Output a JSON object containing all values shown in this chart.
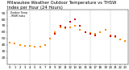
{
  "title": "Milwaukee Weather Outdoor Temperature vs THSW Index per Hour (24 Hours)",
  "title_fontsize": 3.8,
  "background_color": "#ffffff",
  "xlim": [
    -0.5,
    23.5
  ],
  "ylim": [
    10,
    95
  ],
  "yticks": [
    20,
    30,
    40,
    50,
    60,
    70,
    80,
    90
  ],
  "ytick_fontsize": 3.2,
  "xtick_fontsize": 2.8,
  "hours": [
    0,
    1,
    2,
    3,
    4,
    5,
    6,
    7,
    8,
    9,
    10,
    11,
    12,
    13,
    14,
    15,
    16,
    17,
    18,
    19,
    20,
    21,
    22,
    23
  ],
  "outdoor_temp": [
    43,
    42,
    40,
    39,
    38,
    37,
    37,
    40,
    50,
    60,
    67,
    66,
    68,
    70,
    64,
    60,
    59,
    58,
    60,
    64,
    55,
    52,
    48,
    46
  ],
  "thsw_index": [
    null,
    null,
    null,
    null,
    null,
    null,
    null,
    null,
    null,
    58,
    70,
    68,
    76,
    80,
    70,
    60,
    57,
    55,
    null,
    null,
    54,
    54,
    null,
    null
  ],
  "temp_color": "#ff8800",
  "thsw_color": "#cc0000",
  "black_color": "#111111",
  "marker_size": 1.8,
  "grid_positions": [
    4,
    8,
    12,
    16,
    20
  ],
  "grid_color": "#999999",
  "legend_labels": [
    "Outdoor Temp",
    "THSW Index"
  ],
  "legend_colors": [
    "#ff8800",
    "#cc0000"
  ]
}
